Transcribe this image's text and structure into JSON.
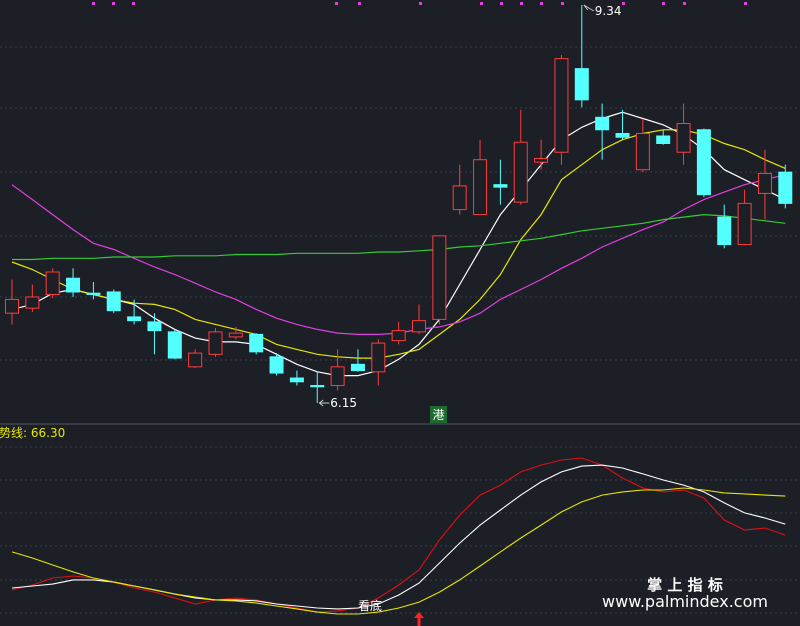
{
  "chart_data": {
    "type": "candlestick",
    "up_color": "#ff3c3c",
    "down_color": "#54ffff",
    "open": [
      6.87,
      6.91,
      7.02,
      7.15,
      7.03,
      7.04,
      6.84,
      6.8,
      6.72,
      6.44,
      6.54,
      6.68,
      6.7,
      6.52,
      6.35,
      6.29,
      6.29,
      6.46,
      6.4,
      6.65,
      6.72,
      6.82,
      7.7,
      7.66,
      7.9,
      7.76,
      8.08,
      8.16,
      8.83,
      8.44,
      8.31,
      8.02,
      8.29,
      8.16,
      8.34,
      7.64,
      7.42,
      7.83,
      8.0
    ],
    "high": [
      7.14,
      7.1,
      7.23,
      7.23,
      7.12,
      7.06,
      6.98,
      6.87,
      6.74,
      6.58,
      6.75,
      6.76,
      6.71,
      6.55,
      6.41,
      6.4,
      6.58,
      6.58,
      6.66,
      6.8,
      6.94,
      7.49,
      8.06,
      8.26,
      8.1,
      8.5,
      8.26,
      8.94,
      9.34,
      8.55,
      8.5,
      8.43,
      8.34,
      8.55,
      8.35,
      7.74,
      7.86,
      8.18,
      8.06
    ],
    "low": [
      6.78,
      6.88,
      6.99,
      7.0,
      6.98,
      6.87,
      6.78,
      6.54,
      6.5,
      6.43,
      6.52,
      6.66,
      6.54,
      6.37,
      6.29,
      6.15,
      6.25,
      6.4,
      6.29,
      6.62,
      6.7,
      6.78,
      7.66,
      7.66,
      7.74,
      7.74,
      8.02,
      8.06,
      8.52,
      8.1,
      8.26,
      8.0,
      8.22,
      8.06,
      7.8,
      7.39,
      7.42,
      7.62,
      7.71
    ],
    "close": [
      6.98,
      7.0,
      7.2,
      7.04,
      7.02,
      6.89,
      6.81,
      6.73,
      6.51,
      6.55,
      6.72,
      6.71,
      6.56,
      6.39,
      6.32,
      6.28,
      6.44,
      6.41,
      6.63,
      6.73,
      6.81,
      7.49,
      7.89,
      8.1,
      7.88,
      8.24,
      8.11,
      8.91,
      8.58,
      8.34,
      8.28,
      8.31,
      8.23,
      8.39,
      7.82,
      7.42,
      7.75,
      7.99,
      7.75
    ],
    "series": [
      {
        "color": "#ffffff",
        "values": [
          6.9,
          6.94,
          7.03,
          7.06,
          7.02,
          6.98,
          6.94,
          6.83,
          6.74,
          6.67,
          6.64,
          6.64,
          6.62,
          6.54,
          6.46,
          6.4,
          6.37,
          6.37,
          6.41,
          6.5,
          6.62,
          6.82,
          7.1,
          7.38,
          7.66,
          7.86,
          8.06,
          8.26,
          8.36,
          8.43,
          8.48,
          8.43,
          8.38,
          8.3,
          8.18,
          8.02,
          7.94,
          7.86,
          7.78
        ]
      },
      {
        "color": "#e6e600",
        "values": [
          7.28,
          7.22,
          7.14,
          7.06,
          7.02,
          6.98,
          6.95,
          6.94,
          6.9,
          6.82,
          6.78,
          6.74,
          6.7,
          6.62,
          6.58,
          6.54,
          6.52,
          6.51,
          6.51,
          6.54,
          6.58,
          6.7,
          6.82,
          6.98,
          7.18,
          7.46,
          7.66,
          7.94,
          8.06,
          8.18,
          8.26,
          8.31,
          8.34,
          8.34,
          8.3,
          8.23,
          8.18,
          8.1,
          8.03
        ]
      },
      {
        "color": "#e040e0",
        "values": [
          7.9,
          7.78,
          7.66,
          7.54,
          7.43,
          7.38,
          7.31,
          7.24,
          7.18,
          7.11,
          7.04,
          6.98,
          6.9,
          6.83,
          6.78,
          6.74,
          6.71,
          6.7,
          6.7,
          6.71,
          6.74,
          6.76,
          6.8,
          6.87,
          6.98,
          7.06,
          7.14,
          7.23,
          7.31,
          7.4,
          7.47,
          7.54,
          7.6,
          7.7,
          7.78,
          7.84,
          7.9,
          7.94,
          7.98
        ]
      },
      {
        "color": "#33cc33",
        "values": [
          7.3,
          7.3,
          7.31,
          7.31,
          7.31,
          7.32,
          7.32,
          7.32,
          7.33,
          7.33,
          7.33,
          7.34,
          7.34,
          7.34,
          7.35,
          7.35,
          7.35,
          7.35,
          7.36,
          7.36,
          7.37,
          7.38,
          7.4,
          7.41,
          7.43,
          7.45,
          7.47,
          7.5,
          7.53,
          7.55,
          7.57,
          7.59,
          7.62,
          7.64,
          7.66,
          7.65,
          7.63,
          7.61,
          7.59
        ]
      }
    ],
    "annotations": [
      "港",
      "看底"
    ],
    "indicator": {
      "label": "势线: 66.30",
      "ylim": [
        0,
        100
      ],
      "series": [
        {
          "color": "#dd1111",
          "values": [
            18.4,
            20.9,
            24.5,
            25.5,
            24.5,
            22.4,
            19.4,
            17.3,
            14.3,
            11.2,
            13.3,
            14.3,
            13.3,
            11.2,
            9.2,
            7.1,
            7.7,
            9.2,
            14.3,
            20.9,
            28.6,
            43.9,
            56.6,
            66.8,
            71.9,
            78.6,
            82.1,
            84.7,
            85.7,
            82.1,
            75.5,
            70.4,
            68.4,
            69.4,
            65.3,
            54.1,
            49.0,
            50.0,
            46.4
          ]
        },
        {
          "color": "#ffffff",
          "values": [
            19.4,
            20.4,
            21.4,
            23.5,
            23.5,
            22.4,
            20.4,
            18.4,
            16.3,
            14.3,
            13.3,
            13.3,
            12.8,
            11.2,
            10.2,
            9.2,
            8.7,
            9.2,
            11.2,
            15.8,
            21.9,
            32.1,
            42.3,
            51.5,
            59.2,
            66.8,
            73.5,
            78.6,
            81.6,
            82.1,
            80.6,
            77.6,
            74.5,
            71.9,
            68.4,
            62.8,
            57.7,
            55.1,
            52.0
          ]
        },
        {
          "color": "#e6e600",
          "values": [
            37.8,
            34.7,
            31.1,
            27.6,
            24.5,
            22.4,
            20.4,
            18.4,
            16.3,
            14.8,
            13.3,
            12.8,
            11.7,
            10.2,
            8.7,
            7.1,
            6.1,
            6.1,
            7.1,
            9.2,
            12.2,
            17.3,
            23.5,
            30.6,
            37.8,
            44.9,
            51.5,
            58.2,
            63.3,
            66.8,
            68.4,
            69.4,
            69.4,
            70.4,
            69.4,
            67.9,
            67.4,
            66.8,
            66.3
          ]
        }
      ]
    },
    "watermark": {
      "title": "掌 上 指 标",
      "url": "www.palmindex.com"
    }
  }
}
